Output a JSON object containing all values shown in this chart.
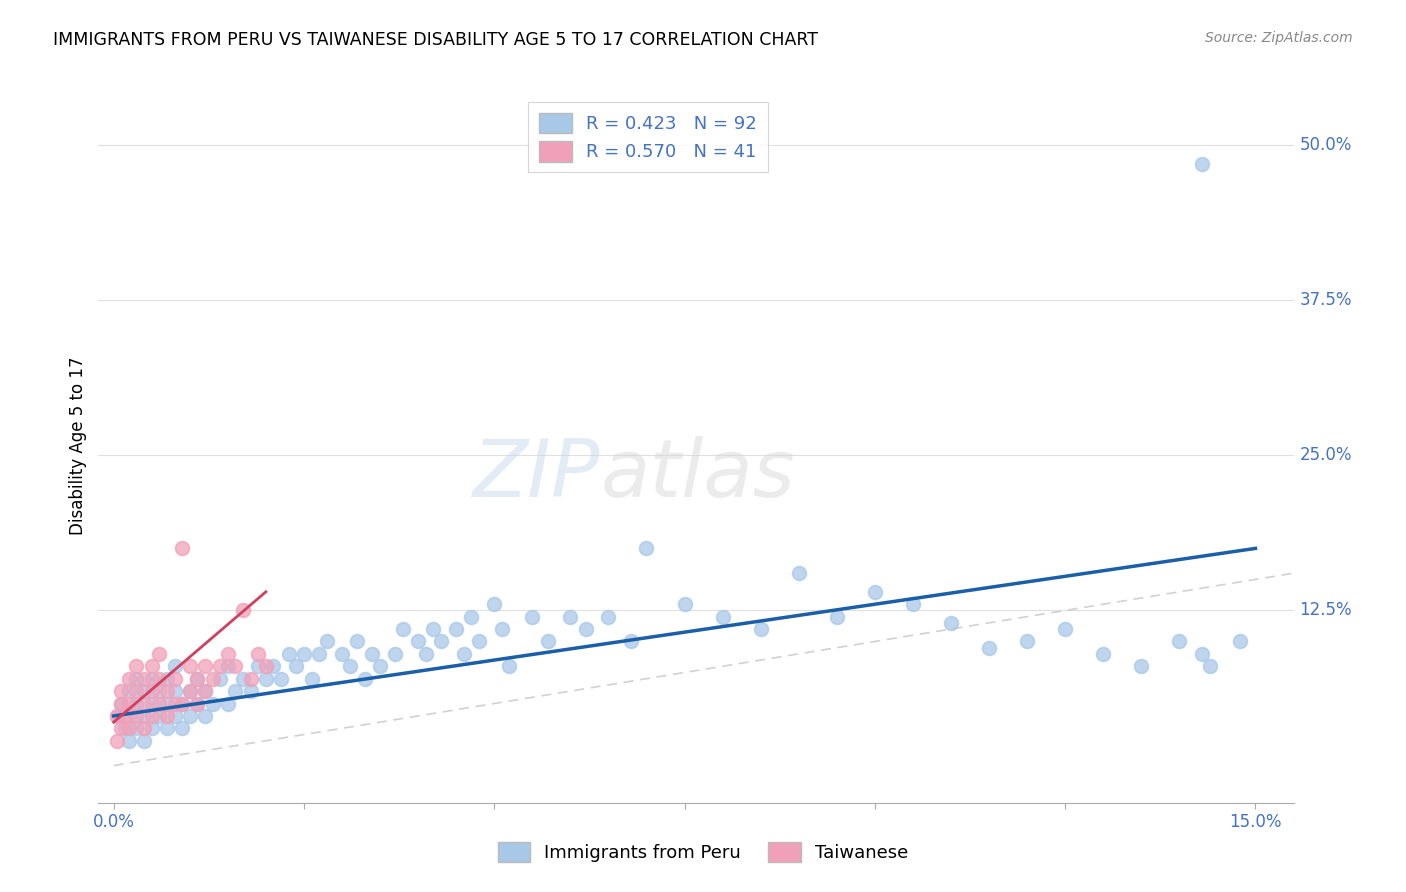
{
  "title": "IMMIGRANTS FROM PERU VS TAIWANESE DISABILITY AGE 5 TO 17 CORRELATION CHART",
  "source": "Source: ZipAtlas.com",
  "ylabel": "Disability Age 5 to 17",
  "right_yticks": [
    "50.0%",
    "37.5%",
    "25.0%",
    "12.5%"
  ],
  "right_ytick_vals": [
    0.5,
    0.375,
    0.25,
    0.125
  ],
  "xlim": [
    -0.002,
    0.155
  ],
  "ylim": [
    -0.03,
    0.545
  ],
  "peru_color": "#a8c8e8",
  "taiwanese_color": "#f0a0b8",
  "peru_line_color": "#1a5fa8",
  "taiwanese_line_color": "#d04060",
  "diagonal_color": "#cccccc",
  "watermark_zip": "ZIP",
  "watermark_atlas": "atlas",
  "peru_x": [
    0.0005,
    0.001,
    0.0015,
    0.002,
    0.002,
    0.002,
    0.003,
    0.003,
    0.003,
    0.004,
    0.004,
    0.004,
    0.005,
    0.005,
    0.005,
    0.006,
    0.006,
    0.007,
    0.007,
    0.007,
    0.008,
    0.008,
    0.008,
    0.009,
    0.009,
    0.01,
    0.01,
    0.011,
    0.011,
    0.012,
    0.012,
    0.013,
    0.014,
    0.015,
    0.015,
    0.016,
    0.017,
    0.018,
    0.019,
    0.02,
    0.021,
    0.022,
    0.023,
    0.024,
    0.025,
    0.026,
    0.027,
    0.028,
    0.03,
    0.031,
    0.032,
    0.033,
    0.034,
    0.035,
    0.037,
    0.038,
    0.04,
    0.041,
    0.042,
    0.043,
    0.045,
    0.046,
    0.047,
    0.048,
    0.05,
    0.051,
    0.052,
    0.055,
    0.057,
    0.06,
    0.062,
    0.065,
    0.068,
    0.07,
    0.075,
    0.08,
    0.085,
    0.09,
    0.095,
    0.1,
    0.105,
    0.11,
    0.115,
    0.12,
    0.125,
    0.13,
    0.135,
    0.14,
    0.143,
    0.144,
    0.148,
    0.143
  ],
  "peru_y": [
    0.04,
    0.05,
    0.03,
    0.02,
    0.04,
    0.06,
    0.03,
    0.05,
    0.07,
    0.02,
    0.04,
    0.06,
    0.03,
    0.05,
    0.07,
    0.04,
    0.06,
    0.03,
    0.05,
    0.07,
    0.04,
    0.06,
    0.08,
    0.03,
    0.05,
    0.04,
    0.06,
    0.05,
    0.07,
    0.04,
    0.06,
    0.05,
    0.07,
    0.05,
    0.08,
    0.06,
    0.07,
    0.06,
    0.08,
    0.07,
    0.08,
    0.07,
    0.09,
    0.08,
    0.09,
    0.07,
    0.09,
    0.1,
    0.09,
    0.08,
    0.1,
    0.07,
    0.09,
    0.08,
    0.09,
    0.11,
    0.1,
    0.09,
    0.11,
    0.1,
    0.11,
    0.09,
    0.12,
    0.1,
    0.13,
    0.11,
    0.08,
    0.12,
    0.1,
    0.12,
    0.11,
    0.12,
    0.1,
    0.175,
    0.13,
    0.12,
    0.11,
    0.155,
    0.12,
    0.14,
    0.13,
    0.115,
    0.095,
    0.1,
    0.11,
    0.09,
    0.08,
    0.1,
    0.09,
    0.08,
    0.1,
    0.485
  ],
  "tw_x": [
    0.0005,
    0.001,
    0.001,
    0.0015,
    0.002,
    0.002,
    0.002,
    0.003,
    0.003,
    0.003,
    0.004,
    0.004,
    0.004,
    0.005,
    0.005,
    0.005,
    0.006,
    0.006,
    0.006,
    0.007,
    0.007,
    0.008,
    0.008,
    0.009,
    0.009,
    0.01,
    0.01,
    0.011,
    0.011,
    0.012,
    0.012,
    0.013,
    0.014,
    0.015,
    0.016,
    0.017,
    0.018,
    0.019,
    0.02,
    0.0005,
    0.001
  ],
  "tw_y": [
    0.04,
    0.05,
    0.06,
    0.04,
    0.03,
    0.05,
    0.07,
    0.04,
    0.06,
    0.08,
    0.03,
    0.05,
    0.07,
    0.04,
    0.06,
    0.08,
    0.05,
    0.07,
    0.09,
    0.04,
    0.06,
    0.05,
    0.07,
    0.05,
    0.175,
    0.06,
    0.08,
    0.05,
    0.07,
    0.06,
    0.08,
    0.07,
    0.08,
    0.09,
    0.08,
    0.125,
    0.07,
    0.09,
    0.08,
    0.02,
    0.03
  ],
  "peru_trend_x": [
    0.0,
    0.15
  ],
  "peru_trend_y": [
    0.04,
    0.175
  ],
  "tw_trend_x": [
    0.0,
    0.02
  ],
  "tw_trend_y": [
    0.035,
    0.14
  ]
}
